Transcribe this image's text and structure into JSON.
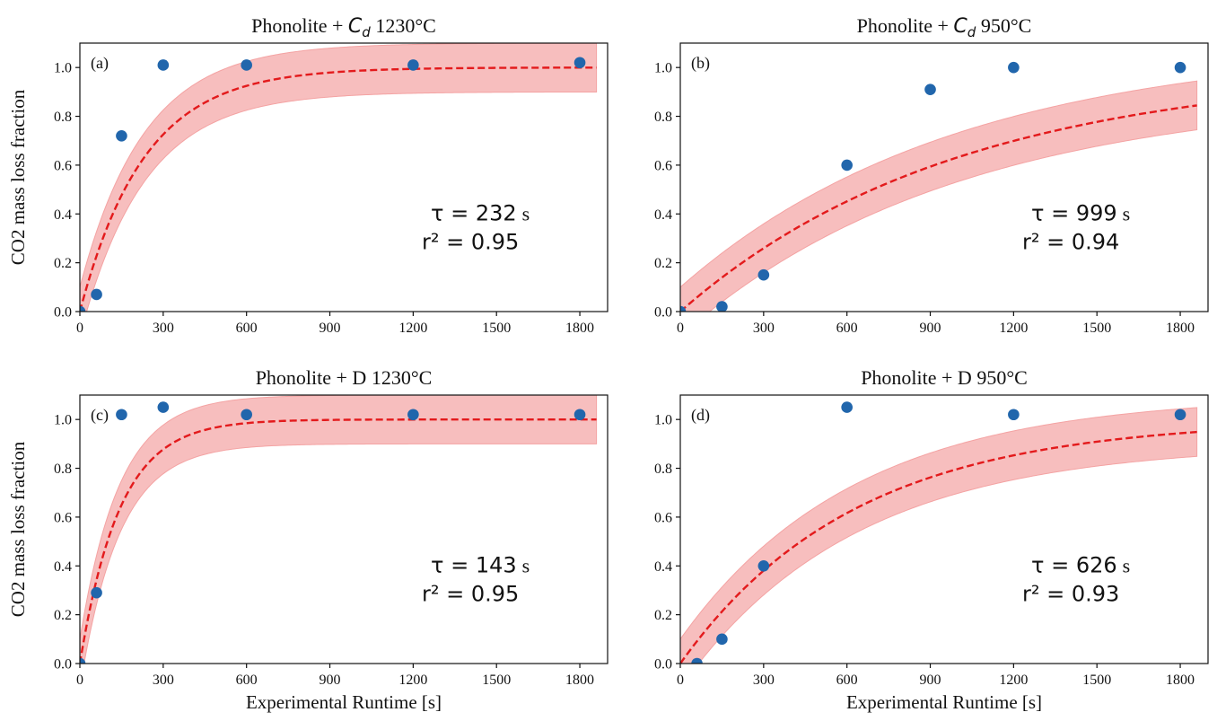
{
  "chart_data": [
    {
      "type": "scatter",
      "panel": "(a)",
      "title": "Phonolite + C_d 1230°C",
      "title_main": "Phonolite + ",
      "title_sym": "C",
      "title_sub": "d",
      "title_temp": " 1230°C",
      "ylabel": "CO2 mass loss fraction",
      "xlabel": "",
      "xlim": [
        0,
        1900
      ],
      "ylim": [
        0,
        1.1
      ],
      "xticks": [
        0,
        300,
        600,
        900,
        1200,
        1500,
        1800
      ],
      "yticks": [
        0.0,
        0.2,
        0.4,
        0.6,
        0.8,
        1.0
      ],
      "x": [
        0,
        60,
        150,
        300,
        600,
        1200,
        1800
      ],
      "y": [
        0.0,
        0.07,
        0.72,
        1.01,
        1.01,
        1.01,
        1.02
      ],
      "tau": 232,
      "r2": 0.95,
      "annot_tau": "τ = 232",
      "annot_r2": "r² = 0.95",
      "annot_unit": "s",
      "band": 0.1,
      "fit_xmax": 1860
    },
    {
      "type": "scatter",
      "panel": "(b)",
      "title": "Phonolite + C_d 950°C",
      "title_main": "Phonolite + ",
      "title_sym": "C",
      "title_sub": "d",
      "title_temp": " 950°C",
      "ylabel": "",
      "xlabel": "",
      "xlim": [
        0,
        1900
      ],
      "ylim": [
        0,
        1.1
      ],
      "xticks": [
        0,
        300,
        600,
        900,
        1200,
        1500,
        1800
      ],
      "yticks": [
        0.0,
        0.2,
        0.4,
        0.6,
        0.8,
        1.0
      ],
      "x": [
        0,
        150,
        300,
        600,
        900,
        1200,
        1800
      ],
      "y": [
        0.0,
        0.02,
        0.15,
        0.6,
        0.91,
        1.0,
        1.0
      ],
      "tau": 999,
      "r2": 0.94,
      "annot_tau": "τ = 999",
      "annot_r2": "r² = 0.94",
      "annot_unit": "s",
      "band": 0.1,
      "fit_xmax": 1860
    },
    {
      "type": "scatter",
      "panel": "(c)",
      "title": "Phonolite + D 1230°C",
      "title_main": "Phonolite + D 1230°C",
      "title_sym": "",
      "title_sub": "",
      "title_temp": "",
      "ylabel": "CO2 mass loss fraction",
      "xlabel": "Experimental Runtime [s]",
      "xlim": [
        0,
        1900
      ],
      "ylim": [
        0,
        1.1
      ],
      "xticks": [
        0,
        300,
        600,
        900,
        1200,
        1500,
        1800
      ],
      "yticks": [
        0.0,
        0.2,
        0.4,
        0.6,
        0.8,
        1.0
      ],
      "x": [
        0,
        60,
        150,
        300,
        600,
        1200,
        1800
      ],
      "y": [
        0.0,
        0.29,
        1.02,
        1.05,
        1.02,
        1.02,
        1.02
      ],
      "tau": 143,
      "r2": 0.95,
      "annot_tau": "τ = 143",
      "annot_r2": "r² = 0.95",
      "annot_unit": "s",
      "band": 0.1,
      "fit_xmax": 1860
    },
    {
      "type": "scatter",
      "panel": "(d)",
      "title": "Phonolite + D 950°C",
      "title_main": "Phonolite + D 950°C",
      "title_sym": "",
      "title_sub": "",
      "title_temp": "",
      "ylabel": "",
      "xlabel": "Experimental Runtime [s]",
      "xlim": [
        0,
        1900
      ],
      "ylim": [
        0,
        1.1
      ],
      "xticks": [
        0,
        300,
        600,
        900,
        1200,
        1500,
        1800
      ],
      "yticks": [
        0.0,
        0.2,
        0.4,
        0.6,
        0.8,
        1.0
      ],
      "x": [
        60,
        150,
        300,
        600,
        1200,
        1800
      ],
      "y": [
        0.0,
        0.1,
        0.4,
        1.05,
        1.02,
        1.02
      ],
      "tau": 626,
      "r2": 0.93,
      "annot_tau": "τ = 626",
      "annot_r2": "r² = 0.93",
      "annot_unit": "s",
      "band": 0.1,
      "fit_xmax": 1860
    }
  ],
  "colors": {
    "points": "#2166ac",
    "fit": "#e31a1c",
    "band": "#f4a3a3",
    "axis": "#111111"
  }
}
